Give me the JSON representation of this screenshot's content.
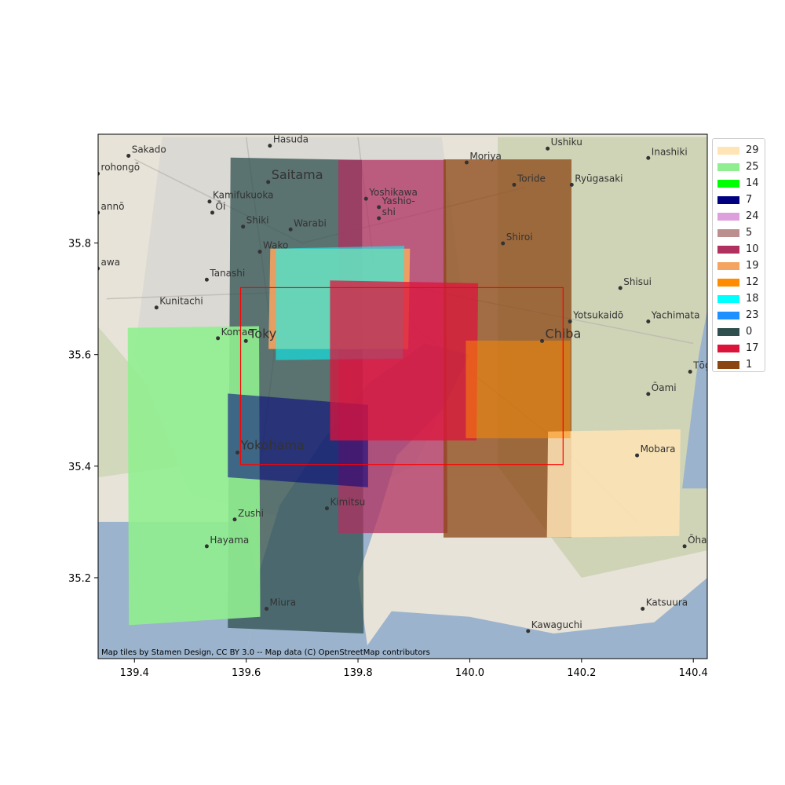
{
  "map": {
    "attribution": "Map tiles by Stamen Design, CC BY 3.0 -- Map data (C) OpenStreetMap contributors",
    "colors": {
      "land_light": "#e8e3d8",
      "urban": "#d9d7d3",
      "green": "#b9c99a",
      "water": "#9bb3cc",
      "roads": "#b8b4b0"
    },
    "place_labels": [
      {
        "name": "Hasuda",
        "lon": 139.648,
        "lat": 35.98,
        "size": "small"
      },
      {
        "name": "Sakado",
        "lon": 139.395,
        "lat": 35.962,
        "size": "small"
      },
      {
        "name": "Ushiku",
        "lon": 140.145,
        "lat": 35.975,
        "size": "small"
      },
      {
        "name": "Inashiki",
        "lon": 140.325,
        "lat": 35.958,
        "size": "small"
      },
      {
        "name": "Saitama",
        "lon": 139.645,
        "lat": 35.915,
        "size": "large"
      },
      {
        "name": "Moriya",
        "lon": 140.0,
        "lat": 35.95,
        "size": "small"
      },
      {
        "name": "rohongō",
        "lon": 139.34,
        "lat": 35.93,
        "size": "small"
      },
      {
        "name": "Toride",
        "lon": 140.085,
        "lat": 35.91,
        "size": "small"
      },
      {
        "name": "Ryūgasaki",
        "lon": 140.188,
        "lat": 35.91,
        "size": "small"
      },
      {
        "name": "Yoshikawa",
        "lon": 139.82,
        "lat": 35.885,
        "size": "small"
      },
      {
        "name": "Kamifukuoka",
        "lon": 139.54,
        "lat": 35.88,
        "size": "small"
      },
      {
        "name": "Yashio-",
        "lon": 139.843,
        "lat": 35.87,
        "size": "small"
      },
      {
        "name": "shi",
        "lon": 139.843,
        "lat": 35.85,
        "size": "small"
      },
      {
        "name": "Ōi",
        "lon": 139.545,
        "lat": 35.86,
        "size": "small"
      },
      {
        "name": "annō",
        "lon": 139.34,
        "lat": 35.86,
        "size": "small"
      },
      {
        "name": "Shiki",
        "lon": 139.6,
        "lat": 35.835,
        "size": "small"
      },
      {
        "name": "Warabi",
        "lon": 139.685,
        "lat": 35.83,
        "size": "small"
      },
      {
        "name": "Shiroi",
        "lon": 140.065,
        "lat": 35.805,
        "size": "small"
      },
      {
        "name": "Wako",
        "lon": 139.63,
        "lat": 35.79,
        "size": "small"
      },
      {
        "name": "awa",
        "lon": 139.34,
        "lat": 35.76,
        "size": "small"
      },
      {
        "name": "Tanashi",
        "lon": 139.535,
        "lat": 35.74,
        "size": "small"
      },
      {
        "name": "Shisui",
        "lon": 140.275,
        "lat": 35.725,
        "size": "small"
      },
      {
        "name": "Kunitachi",
        "lon": 139.445,
        "lat": 35.69,
        "size": "small"
      },
      {
        "name": "Yotsukaidō",
        "lon": 140.185,
        "lat": 35.665,
        "size": "small"
      },
      {
        "name": "Yachimata",
        "lon": 140.325,
        "lat": 35.665,
        "size": "small"
      },
      {
        "name": "Komae",
        "lon": 139.555,
        "lat": 35.635,
        "size": "small"
      },
      {
        "name": "Toky",
        "lon": 139.605,
        "lat": 35.63,
        "size": "large"
      },
      {
        "name": "Chiba",
        "lon": 140.135,
        "lat": 35.63,
        "size": "large"
      },
      {
        "name": "Tōgan",
        "lon": 140.4,
        "lat": 35.575,
        "size": "small"
      },
      {
        "name": "Ōami",
        "lon": 140.325,
        "lat": 35.535,
        "size": "small"
      },
      {
        "name": "Yokohama",
        "lon": 139.59,
        "lat": 35.43,
        "size": "large"
      },
      {
        "name": "Mobara",
        "lon": 140.305,
        "lat": 35.425,
        "size": "small"
      },
      {
        "name": "Kimitsu",
        "lon": 139.75,
        "lat": 35.33,
        "size": "small"
      },
      {
        "name": "Zushi",
        "lon": 139.585,
        "lat": 35.31,
        "size": "small"
      },
      {
        "name": "Ōha",
        "lon": 140.39,
        "lat": 35.262,
        "size": "small"
      },
      {
        "name": "Hayama",
        "lon": 139.535,
        "lat": 35.262,
        "size": "small"
      },
      {
        "name": "Miura",
        "lon": 139.642,
        "lat": 35.15,
        "size": "small"
      },
      {
        "name": "Katsuura",
        "lon": 140.315,
        "lat": 35.15,
        "size": "small"
      },
      {
        "name": "Kawaguchi",
        "lon": 140.11,
        "lat": 35.11,
        "size": "small"
      }
    ]
  },
  "chart_data": {
    "type": "map",
    "xlim": [
      139.335,
      140.425
    ],
    "ylim": [
      35.055,
      35.995
    ],
    "xticks": [
      "139.4",
      "139.6",
      "139.8",
      "140.0",
      "140.2",
      "140.4"
    ],
    "xtick_values": [
      139.4,
      139.6,
      139.8,
      140.0,
      140.2,
      140.4
    ],
    "yticks": [
      "35.2",
      "35.4",
      "35.6",
      "35.8"
    ],
    "ytick_values": [
      35.2,
      35.4,
      35.6,
      35.8
    ],
    "bounding_box": {
      "lon": [
        139.59,
        140.167
      ],
      "lat": [
        35.403,
        35.72
      ],
      "color": "#ff0000"
    },
    "footprints": [
      {
        "name": "0",
        "color": "#2f4f4f",
        "opacity": 0.75,
        "polygon": [
          [
            139.572,
            35.953
          ],
          [
            139.807,
            35.949
          ],
          [
            139.81,
            35.1
          ],
          [
            139.567,
            35.11
          ]
        ]
      },
      {
        "name": "25",
        "color": "#90ee90",
        "opacity": 0.9,
        "polygon": [
          [
            139.388,
            35.648
          ],
          [
            139.623,
            35.651
          ],
          [
            139.625,
            35.13
          ],
          [
            139.39,
            35.115
          ]
        ]
      },
      {
        "name": "10",
        "color": "#b03060",
        "opacity": 0.75,
        "polygon": [
          [
            139.765,
            35.949
          ],
          [
            139.957,
            35.949
          ],
          [
            139.96,
            35.28
          ],
          [
            139.765,
            35.28
          ]
        ]
      },
      {
        "name": "1",
        "color": "#8b4513",
        "opacity": 0.75,
        "polygon": [
          [
            139.953,
            35.95
          ],
          [
            140.182,
            35.95
          ],
          [
            140.182,
            35.272
          ],
          [
            139.953,
            35.272
          ]
        ]
      },
      {
        "name": "29",
        "color": "#ffe4b5",
        "opacity": 0.85,
        "polygon": [
          [
            140.14,
            35.462
          ],
          [
            140.377,
            35.466
          ],
          [
            140.375,
            35.275
          ],
          [
            140.138,
            35.272
          ]
        ]
      },
      {
        "name": "19",
        "color": "#f4a460",
        "opacity": 0.9,
        "polygon": [
          [
            139.643,
            35.79
          ],
          [
            139.893,
            35.79
          ],
          [
            139.89,
            35.61
          ],
          [
            139.64,
            35.61
          ]
        ]
      },
      {
        "name": "18",
        "color": "#00ffff",
        "opacity": 0.55,
        "polygon": [
          [
            139.653,
            35.79
          ],
          [
            139.883,
            35.795
          ],
          [
            139.88,
            35.593
          ],
          [
            139.653,
            35.59
          ]
        ]
      },
      {
        "name": "7",
        "color": "#000080",
        "opacity": 0.55,
        "polygon": [
          [
            139.567,
            35.53
          ],
          [
            139.818,
            35.51
          ],
          [
            139.818,
            35.362
          ],
          [
            139.567,
            35.38
          ]
        ]
      },
      {
        "name": "17",
        "color": "#dc143c",
        "opacity": 0.75,
        "polygon": [
          [
            139.75,
            35.733
          ],
          [
            140.015,
            35.728
          ],
          [
            140.012,
            35.446
          ],
          [
            139.75,
            35.446
          ]
        ]
      },
      {
        "name": "12",
        "color": "#ff8c00",
        "opacity": 0.5,
        "polygon": [
          [
            139.993,
            35.625
          ],
          [
            140.18,
            35.625
          ],
          [
            140.18,
            35.45
          ],
          [
            139.993,
            35.45
          ]
        ]
      }
    ],
    "legend": {
      "placement": "outside-right-top",
      "entries": [
        {
          "label": "29",
          "color": "#ffe4b5"
        },
        {
          "label": "25",
          "color": "#90ee90"
        },
        {
          "label": "14",
          "color": "#00ff00"
        },
        {
          "label": "7",
          "color": "#000080"
        },
        {
          "label": "24",
          "color": "#dda0dd"
        },
        {
          "label": "5",
          "color": "#bc8f8f"
        },
        {
          "label": "10",
          "color": "#b03060"
        },
        {
          "label": "19",
          "color": "#f4a460"
        },
        {
          "label": "12",
          "color": "#ff8c00"
        },
        {
          "label": "18",
          "color": "#00ffff"
        },
        {
          "label": "23",
          "color": "#1e90ff"
        },
        {
          "label": "0",
          "color": "#2f4f4f"
        },
        {
          "label": "17",
          "color": "#dc143c"
        },
        {
          "label": "1",
          "color": "#8b4513"
        }
      ]
    }
  }
}
